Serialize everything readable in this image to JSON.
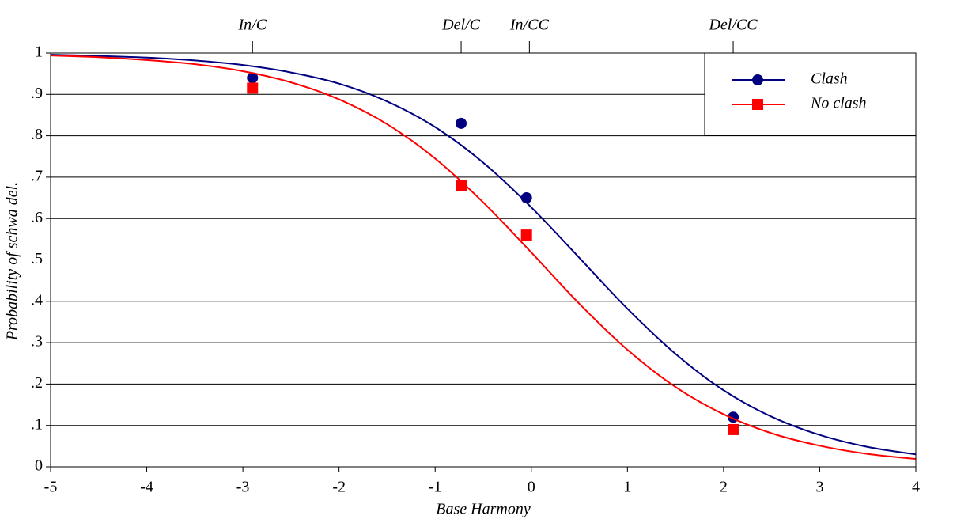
{
  "chart_data": {
    "type": "scatter",
    "xlabel": "Base Harmony",
    "ylabel": "Probability of schwa del.",
    "xlim": [
      -5,
      4
    ],
    "ylim": [
      0,
      1
    ],
    "xticks": [
      -5,
      -4,
      -3,
      -2,
      -1,
      0,
      1,
      2,
      3,
      4
    ],
    "yticks": [
      0,
      {
        "value": 0.1,
        "label": ".1"
      },
      {
        "value": 0.2,
        "label": ".2"
      },
      {
        "value": 0.3,
        "label": ".3"
      },
      {
        "value": 0.4,
        "label": ".4"
      },
      {
        "value": 0.5,
        "label": ".5"
      },
      {
        "value": 0.6,
        "label": ".6"
      },
      {
        "value": 0.7,
        "label": ".7"
      },
      {
        "value": 0.8,
        "label": ".8"
      },
      {
        "value": 0.9,
        "label": ".9"
      },
      1
    ],
    "x2ticks": [
      {
        "value": -2.9,
        "label": "In/C"
      },
      {
        "value": -0.73,
        "label": "Del/C"
      },
      {
        "value": -0.02,
        "label": "In/CC"
      },
      {
        "value": 2.1,
        "label": "Del/CC"
      }
    ],
    "grid": true,
    "legend": "upper right",
    "fit_x": [
      -5,
      -4.5,
      -4,
      -3.5,
      -3,
      -2.5,
      -2,
      -1.5,
      -1,
      -0.5,
      0,
      0.5,
      1,
      1.5,
      2,
      2.5,
      3,
      3.5,
      4
    ],
    "series": [
      {
        "name": "Clash",
        "color": "#000080",
        "marker": "circle",
        "x": [
          -2.9,
          -0.73,
          -0.05,
          2.1
        ],
        "values": [
          0.94,
          0.83,
          0.65,
          0.12
        ],
        "fit_values": [
          0.996,
          0.993,
          0.989,
          0.982,
          0.971,
          0.953,
          0.926,
          0.883,
          0.821,
          0.735,
          0.627,
          0.505,
          0.382,
          0.273,
          0.185,
          0.121,
          0.077,
          0.048,
          0.03
        ]
      },
      {
        "name": "No clash",
        "color": "#ff0000",
        "marker": "square",
        "x": [
          -2.9,
          -0.73,
          -0.05,
          2.1
        ],
        "values": [
          0.915,
          0.68,
          0.56,
          0.09
        ],
        "fit_values": [
          0.994,
          0.99,
          0.983,
          0.973,
          0.956,
          0.929,
          0.888,
          0.828,
          0.745,
          0.639,
          0.518,
          0.394,
          0.283,
          0.193,
          0.127,
          0.081,
          0.051,
          0.031,
          0.019
        ]
      }
    ]
  }
}
